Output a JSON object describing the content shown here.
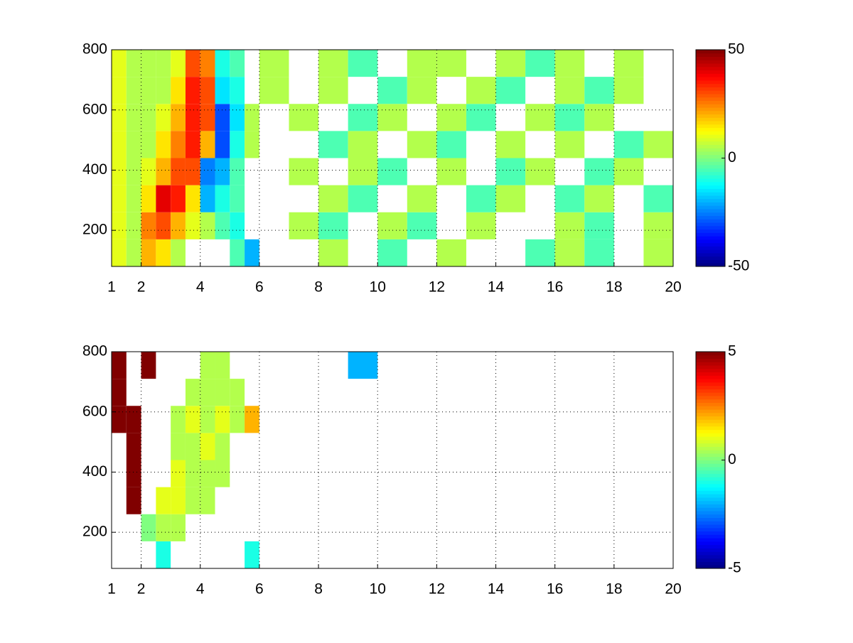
{
  "chart_data": [
    {
      "type": "heatmap",
      "colormap": "jet",
      "grid": true,
      "xlim": [
        1,
        20
      ],
      "ylim": [
        80,
        800
      ],
      "xticks": [
        1,
        2,
        4,
        6,
        8,
        10,
        12,
        14,
        16,
        18,
        20
      ],
      "yticks": [
        200,
        400,
        600,
        800
      ],
      "clim": [
        -50,
        50
      ],
      "cticks": [
        -50,
        0,
        50
      ],
      "x_edges": [
        1,
        1.5,
        2,
        2.5,
        3,
        3.5,
        4,
        4.5,
        5,
        5.5,
        6,
        7,
        8,
        9,
        10,
        11,
        12,
        13,
        14,
        15,
        16,
        17,
        18,
        19,
        20
      ],
      "y_edges": [
        80,
        170,
        260,
        350,
        440,
        530,
        620,
        710,
        800
      ],
      "z": [
        [
          10,
          5,
          20,
          15,
          5,
          null,
          null,
          null,
          -5,
          -20,
          null,
          null,
          5,
          null,
          -5,
          null,
          5,
          null,
          null,
          -5,
          5,
          -5,
          null,
          5
        ],
        [
          10,
          5,
          25,
          30,
          20,
          10,
          5,
          -5,
          -10,
          null,
          null,
          5,
          -5,
          null,
          5,
          -5,
          null,
          5,
          null,
          null,
          5,
          -5,
          null,
          5
        ],
        [
          10,
          5,
          15,
          40,
          35,
          15,
          -20,
          -10,
          -5,
          null,
          null,
          null,
          5,
          -5,
          null,
          5,
          null,
          -5,
          5,
          null,
          -5,
          5,
          null,
          -5
        ],
        [
          10,
          5,
          10,
          20,
          30,
          30,
          -25,
          -20,
          -5,
          null,
          null,
          5,
          null,
          5,
          -5,
          null,
          5,
          null,
          -5,
          5,
          null,
          -5,
          5,
          null
        ],
        [
          10,
          5,
          5,
          15,
          25,
          35,
          20,
          -30,
          -10,
          5,
          null,
          null,
          -5,
          5,
          null,
          5,
          -5,
          null,
          5,
          null,
          5,
          null,
          -5,
          5
        ],
        [
          10,
          5,
          5,
          10,
          20,
          35,
          30,
          -30,
          -15,
          5,
          null,
          5,
          null,
          -5,
          5,
          null,
          5,
          -5,
          null,
          5,
          -5,
          5,
          null,
          null
        ],
        [
          10,
          5,
          5,
          5,
          15,
          35,
          30,
          -15,
          -10,
          null,
          5,
          null,
          5,
          null,
          -5,
          5,
          null,
          5,
          -5,
          null,
          5,
          -5,
          5,
          null
        ],
        [
          10,
          5,
          5,
          5,
          10,
          30,
          25,
          -10,
          -5,
          null,
          5,
          null,
          5,
          -5,
          null,
          5,
          5,
          null,
          5,
          -5,
          5,
          null,
          5,
          null
        ]
      ]
    },
    {
      "type": "heatmap",
      "colormap": "jet",
      "grid": true,
      "xlim": [
        1,
        20
      ],
      "ylim": [
        80,
        800
      ],
      "xticks": [
        1,
        2,
        4,
        6,
        8,
        10,
        12,
        14,
        16,
        18,
        20
      ],
      "yticks": [
        200,
        400,
        600,
        800
      ],
      "clim": [
        -5,
        5
      ],
      "cticks": [
        -5,
        0,
        5
      ],
      "x_edges": [
        1,
        1.5,
        2,
        2.5,
        3,
        3.5,
        4,
        4.5,
        5,
        5.5,
        6,
        7,
        8,
        9,
        10,
        11,
        12,
        13,
        14,
        15,
        16,
        17,
        18,
        19,
        20
      ],
      "y_edges": [
        80,
        170,
        260,
        350,
        440,
        530,
        620,
        710,
        800
      ],
      "z": [
        [
          null,
          null,
          null,
          -1,
          null,
          null,
          null,
          null,
          null,
          -1,
          null,
          null,
          null,
          null,
          null,
          null,
          null,
          null,
          null,
          null,
          null,
          null,
          null,
          null
        ],
        [
          null,
          null,
          0,
          0.5,
          0.5,
          null,
          null,
          null,
          null,
          null,
          null,
          null,
          null,
          null,
          null,
          null,
          null,
          null,
          null,
          null,
          null,
          null,
          null,
          null
        ],
        [
          null,
          5,
          null,
          1,
          1,
          0.5,
          0.5,
          null,
          null,
          null,
          null,
          null,
          null,
          null,
          null,
          null,
          null,
          null,
          null,
          null,
          null,
          null,
          null,
          null
        ],
        [
          null,
          5,
          null,
          null,
          1,
          0.5,
          0.5,
          0.5,
          null,
          null,
          null,
          null,
          null,
          null,
          null,
          null,
          null,
          null,
          null,
          null,
          null,
          null,
          null,
          null
        ],
        [
          null,
          5,
          null,
          null,
          0.5,
          0.5,
          1,
          0.5,
          null,
          null,
          null,
          null,
          null,
          null,
          null,
          null,
          null,
          null,
          null,
          null,
          null,
          null,
          null,
          null
        ],
        [
          5,
          5,
          null,
          null,
          0.5,
          1,
          0.5,
          1,
          0.5,
          2,
          null,
          null,
          null,
          null,
          null,
          null,
          null,
          null,
          null,
          null,
          null,
          null,
          null,
          null
        ],
        [
          5,
          null,
          null,
          null,
          null,
          0.5,
          0.5,
          0.5,
          0.5,
          null,
          null,
          null,
          null,
          null,
          null,
          null,
          null,
          null,
          null,
          null,
          null,
          null,
          null,
          null
        ],
        [
          5,
          null,
          5,
          null,
          null,
          null,
          0.5,
          0.5,
          null,
          null,
          null,
          null,
          null,
          -2,
          null,
          null,
          null,
          null,
          null,
          null,
          null,
          null,
          null,
          null
        ]
      ]
    }
  ]
}
